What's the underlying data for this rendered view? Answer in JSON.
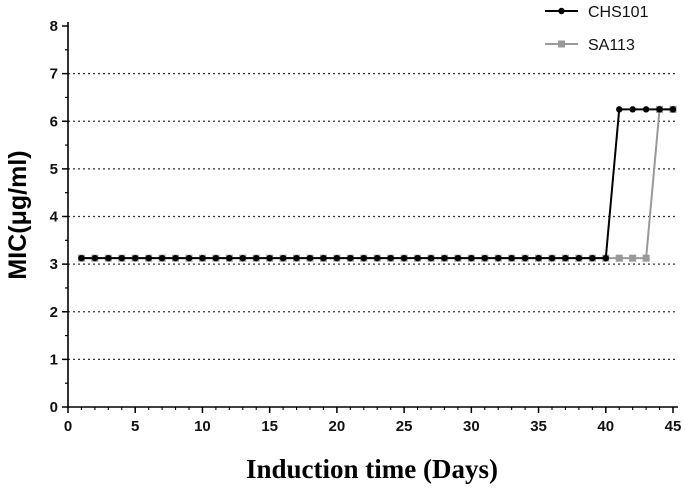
{
  "chart_data": {
    "type": "line",
    "title": "",
    "xlabel": "Induction time (Days)",
    "ylabel": "MIC(μg/ml)",
    "xlim": [
      0,
      45
    ],
    "ylim": [
      0,
      8
    ],
    "xticks": [
      0,
      5,
      10,
      15,
      20,
      25,
      30,
      35,
      40,
      45
    ],
    "yticks": [
      0,
      1,
      2,
      3,
      4,
      5,
      6,
      7,
      8
    ],
    "grid": "horizontal dotted at 1-7",
    "legend_position": "top-right",
    "series": [
      {
        "name": "CHS101",
        "color": "#000000",
        "marker": "circle",
        "points": [
          [
            1,
            3.125
          ],
          [
            2,
            3.125
          ],
          [
            3,
            3.125
          ],
          [
            4,
            3.125
          ],
          [
            5,
            3.125
          ],
          [
            6,
            3.125
          ],
          [
            7,
            3.125
          ],
          [
            8,
            3.125
          ],
          [
            9,
            3.125
          ],
          [
            10,
            3.125
          ],
          [
            11,
            3.125
          ],
          [
            12,
            3.125
          ],
          [
            13,
            3.125
          ],
          [
            14,
            3.125
          ],
          [
            15,
            3.125
          ],
          [
            16,
            3.125
          ],
          [
            17,
            3.125
          ],
          [
            18,
            3.125
          ],
          [
            19,
            3.125
          ],
          [
            20,
            3.125
          ],
          [
            21,
            3.125
          ],
          [
            22,
            3.125
          ],
          [
            23,
            3.125
          ],
          [
            24,
            3.125
          ],
          [
            25,
            3.125
          ],
          [
            26,
            3.125
          ],
          [
            27,
            3.125
          ],
          [
            28,
            3.125
          ],
          [
            29,
            3.125
          ],
          [
            30,
            3.125
          ],
          [
            31,
            3.125
          ],
          [
            32,
            3.125
          ],
          [
            33,
            3.125
          ],
          [
            34,
            3.125
          ],
          [
            35,
            3.125
          ],
          [
            36,
            3.125
          ],
          [
            37,
            3.125
          ],
          [
            38,
            3.125
          ],
          [
            39,
            3.125
          ],
          [
            40,
            3.125
          ],
          [
            41,
            6.25
          ],
          [
            42,
            6.25
          ],
          [
            43,
            6.25
          ],
          [
            44,
            6.25
          ],
          [
            45,
            6.25
          ]
        ]
      },
      {
        "name": "SA113",
        "color": "#999999",
        "marker": "square",
        "points": [
          [
            1,
            3.125
          ],
          [
            2,
            3.125
          ],
          [
            3,
            3.125
          ],
          [
            4,
            3.125
          ],
          [
            5,
            3.125
          ],
          [
            6,
            3.125
          ],
          [
            7,
            3.125
          ],
          [
            8,
            3.125
          ],
          [
            9,
            3.125
          ],
          [
            10,
            3.125
          ],
          [
            11,
            3.125
          ],
          [
            12,
            3.125
          ],
          [
            13,
            3.125
          ],
          [
            14,
            3.125
          ],
          [
            15,
            3.125
          ],
          [
            16,
            3.125
          ],
          [
            17,
            3.125
          ],
          [
            18,
            3.125
          ],
          [
            19,
            3.125
          ],
          [
            20,
            3.125
          ],
          [
            21,
            3.125
          ],
          [
            22,
            3.125
          ],
          [
            23,
            3.125
          ],
          [
            24,
            3.125
          ],
          [
            25,
            3.125
          ],
          [
            26,
            3.125
          ],
          [
            27,
            3.125
          ],
          [
            28,
            3.125
          ],
          [
            29,
            3.125
          ],
          [
            30,
            3.125
          ],
          [
            31,
            3.125
          ],
          [
            32,
            3.125
          ],
          [
            33,
            3.125
          ],
          [
            34,
            3.125
          ],
          [
            35,
            3.125
          ],
          [
            36,
            3.125
          ],
          [
            37,
            3.125
          ],
          [
            38,
            3.125
          ],
          [
            39,
            3.125
          ],
          [
            40,
            3.125
          ],
          [
            41,
            3.125
          ],
          [
            42,
            3.125
          ],
          [
            43,
            3.125
          ],
          [
            44,
            6.25
          ],
          [
            45,
            6.25
          ]
        ]
      }
    ]
  }
}
